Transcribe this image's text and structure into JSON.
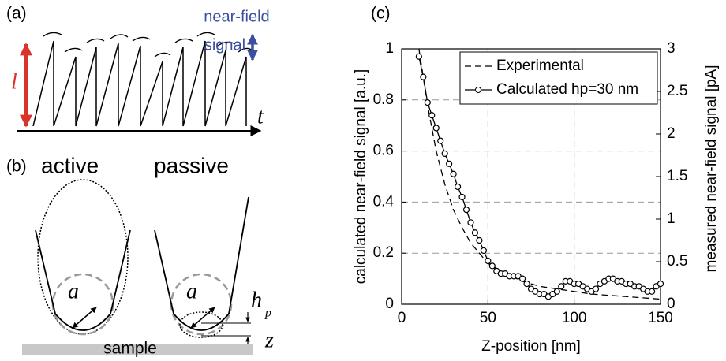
{
  "chart_data": {
    "type": "line",
    "xlabel": "Z-position [nm]",
    "ylabel": "calculated near-field signal [a.u.]",
    "y2label": "measured near-field signal [pA]",
    "xlim": [
      0,
      150
    ],
    "xticks": [
      0,
      50,
      100,
      150
    ],
    "ylim": [
      0,
      1
    ],
    "yticks": [
      0,
      0.2,
      0.4,
      0.6,
      0.8,
      1
    ],
    "y2lim": [
      0,
      3
    ],
    "y2ticks": [
      0,
      0.5,
      1,
      1.5,
      2,
      2.5,
      3
    ],
    "grid": true,
    "legend": "upper right",
    "series": [
      {
        "name": "Experimental",
        "color": "#000000",
        "style": "dashed",
        "axis": "y2",
        "x": [
          10,
          15,
          20,
          25,
          30,
          35,
          40,
          45,
          50,
          60,
          70,
          80,
          90,
          100,
          110,
          120,
          130,
          140,
          150
        ],
        "values": [
          3.0,
          2.34,
          1.8,
          1.41,
          1.11,
          0.9,
          0.72,
          0.6,
          0.48,
          0.36,
          0.27,
          0.21,
          0.18,
          0.15,
          0.12,
          0.105,
          0.09,
          0.075,
          0.06
        ]
      },
      {
        "name": "Calculated hp=30 nm",
        "color": "#000000",
        "style": "solid-circle",
        "x": [
          10,
          12.5,
          15,
          17.5,
          20,
          22.5,
          25,
          27.5,
          30,
          32.5,
          35,
          37.5,
          40,
          42.5,
          45,
          47.5,
          50,
          52.5,
          55,
          57.5,
          60,
          62.5,
          65,
          67.5,
          70,
          72.5,
          75,
          77.5,
          80,
          82.5,
          85,
          87.5,
          90,
          92.5,
          95,
          97.5,
          100,
          102.5,
          105,
          107.5,
          110,
          112.5,
          115,
          117.5,
          120,
          122.5,
          125,
          127.5,
          130,
          132.5,
          135,
          137.5,
          140,
          142.5,
          145,
          147.5,
          150
        ],
        "values": [
          0.97,
          0.89,
          0.79,
          0.74,
          0.69,
          0.64,
          0.59,
          0.55,
          0.51,
          0.46,
          0.42,
          0.37,
          0.32,
          0.28,
          0.25,
          0.21,
          0.17,
          0.15,
          0.13,
          0.12,
          0.12,
          0.11,
          0.11,
          0.11,
          0.1,
          0.08,
          0.06,
          0.05,
          0.04,
          0.04,
          0.03,
          0.04,
          0.05,
          0.07,
          0.09,
          0.09,
          0.08,
          0.08,
          0.07,
          0.06,
          0.05,
          0.06,
          0.08,
          0.09,
          0.1,
          0.1,
          0.09,
          0.09,
          0.08,
          0.08,
          0.07,
          0.07,
          0.06,
          0.05,
          0.05,
          0.07,
          0.08
        ]
      }
    ]
  },
  "diagram": {
    "panel_labels": [
      "(a)",
      "(b)",
      "(c)"
    ],
    "signal_label": [
      "near-field",
      "signal"
    ],
    "l": "l",
    "t": "t",
    "active": "active",
    "passive": "passive",
    "a": "a",
    "h": "h",
    "p": "p",
    "z": "z",
    "sample": "sample"
  }
}
